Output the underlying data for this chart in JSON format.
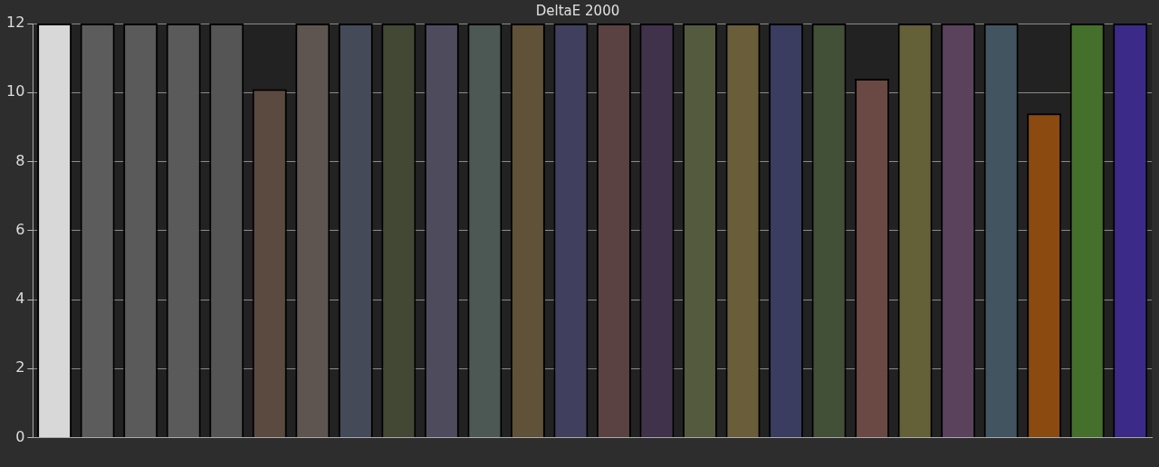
{
  "chart_data": {
    "type": "bar",
    "title": "DeltaE 2000",
    "categories": [
      null,
      null,
      null,
      null,
      null,
      null,
      null,
      null,
      null,
      null,
      null,
      null,
      null,
      null,
      null,
      null,
      null,
      null,
      null,
      null,
      null,
      null,
      null,
      null,
      null,
      null
    ],
    "values": [
      12,
      12,
      12,
      12,
      12,
      10.1,
      12,
      12,
      12,
      12,
      12,
      12,
      12,
      12,
      12,
      12,
      12,
      12,
      12,
      10.4,
      12,
      12,
      12,
      9.4,
      12,
      12
    ],
    "colors": [
      "#d8d8d8",
      "#5c5c5c",
      "#5a5a5a",
      "#5a5a5a",
      "#555555",
      "#5a4a40",
      "#5e5550",
      "#444a58",
      "#424834",
      "#4e4c5c",
      "#4c5854",
      "#605238",
      "#40405e",
      "#5a4242",
      "#40324a",
      "#545a3e",
      "#6a5e3a",
      "#3a3c60",
      "#425038",
      "#6a4844",
      "#646038",
      "#5a425c",
      "#425460",
      "#8a4a10",
      "#44702c",
      "#3c2a88"
    ],
    "ylim": [
      0,
      12
    ],
    "yticks": [
      0,
      2,
      4,
      6,
      8,
      10,
      12
    ],
    "grid": "y",
    "legend": false
  }
}
